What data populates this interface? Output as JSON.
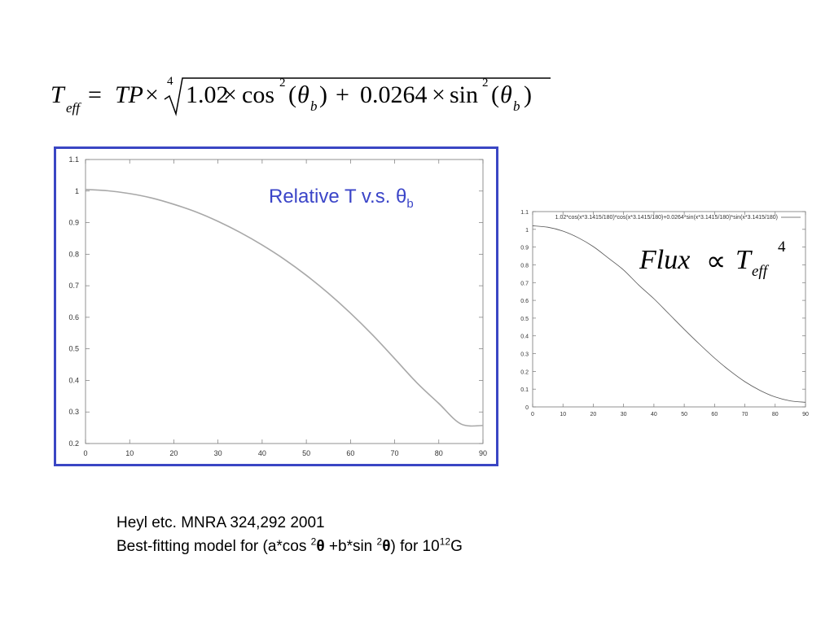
{
  "formula": {
    "T": "T",
    "eff": "eff",
    "equals": "=",
    "TP": "TP",
    "times": "×",
    "root_index": "4",
    "coef1": "1.02",
    "times2": "×",
    "cos": "cos",
    "square": "2",
    "open_paren": "(",
    "theta": "θ",
    "b": "b",
    "close_paren": ")",
    "plus": "+",
    "coef2": "0.0264",
    "times3": "×",
    "sin": "sin",
    "square2": "2",
    "open_paren2": "(",
    "theta2": "θ",
    "b2": "b",
    "close_paren2": ")"
  },
  "overlay_title": {
    "text": "Relative T  v.s. θ",
    "subscript": "b"
  },
  "flux_formula": {
    "flux": "Flux",
    "proportional": "∝",
    "T": "T",
    "eff": "eff",
    "power": "4"
  },
  "caption": {
    "line1": "Heyl etc. MNRA 324,292 2001",
    "line2_a": "Best-fitting model for (a*cos ",
    "sup1": "2",
    "theta1": "θ",
    "line2_b": " +b*sin ",
    "sup2": "2",
    "theta2": "θ",
    "line2_c": ") for 10",
    "sup3": "12",
    "line2_d": "G"
  },
  "colors": {
    "frame_border": "#3a46c4",
    "title_text": "#3b45c8",
    "left_curve": "#a8a8a8",
    "right_curve": "#555555"
  },
  "chart_data": [
    {
      "type": "line",
      "xlim": [
        0,
        90
      ],
      "ylim": [
        0.2,
        1.1
      ],
      "x_ticks": [
        "0",
        "10",
        "20",
        "30",
        "40",
        "50",
        "60",
        "70",
        "80",
        "90"
      ],
      "y_ticks": [
        "0.2",
        "0.3",
        "0.4",
        "0.5",
        "0.6",
        "0.7",
        "0.8",
        "0.9",
        "1",
        "1.1"
      ],
      "grid": false,
      "series": [
        {
          "x": [
            0,
            5,
            10,
            15,
            20,
            25,
            30,
            35,
            40,
            45,
            50,
            55,
            60,
            65,
            70,
            75,
            80,
            85,
            90
          ],
          "values": [
            1.005,
            1.001,
            0.992,
            0.978,
            0.958,
            0.934,
            0.904,
            0.869,
            0.829,
            0.784,
            0.733,
            0.676,
            0.613,
            0.544,
            0.469,
            0.393,
            0.327,
            0.262,
            0.257
          ]
        }
      ]
    },
    {
      "type": "line",
      "xlim": [
        0,
        90
      ],
      "ylim": [
        0,
        1.1
      ],
      "x_ticks": [
        "0",
        "10",
        "20",
        "30",
        "40",
        "50",
        "60",
        "70",
        "80",
        "90"
      ],
      "y_ticks": [
        "0",
        "0.1",
        "0.2",
        "0.3",
        "0.4",
        "0.5",
        "0.6",
        "0.7",
        "0.8",
        "0.9",
        "1",
        "1.1"
      ],
      "grid": false,
      "legend_position": "top-right",
      "series": [
        {
          "name": "1.02*cos(x*3.1415/180)*cos(x*3.1415/180)+0.0264*sin(x*3.1415/180)*sin(x*3.1415/180)",
          "x": [
            0,
            5,
            10,
            15,
            20,
            25,
            30,
            35,
            40,
            45,
            50,
            55,
            60,
            65,
            70,
            75,
            80,
            85,
            90
          ],
          "values": [
            1.02,
            1.012,
            0.99,
            0.953,
            0.903,
            0.838,
            0.771,
            0.686,
            0.609,
            0.523,
            0.437,
            0.354,
            0.275,
            0.204,
            0.142,
            0.093,
            0.056,
            0.034,
            0.026
          ]
        }
      ]
    }
  ]
}
